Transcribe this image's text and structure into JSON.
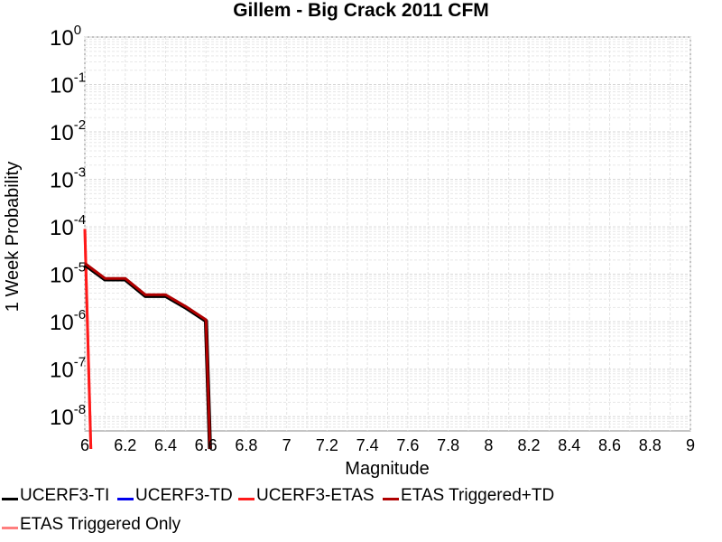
{
  "chart_data": {
    "type": "line",
    "title": "Gillem - Big Crack 2011 CFM",
    "xlabel": "Magnitude",
    "ylabel": "1 Week Probability",
    "xlim": [
      6,
      9
    ],
    "ylim_log10": [
      -8.3,
      0
    ],
    "y_scale": "log",
    "grid": true,
    "x_ticks": [
      "6",
      "6.2",
      "6.4",
      "6.6",
      "6.8",
      "7",
      "7.2",
      "7.4",
      "7.6",
      "7.8",
      "8",
      "8.2",
      "8.4",
      "8.6",
      "8.8",
      "9"
    ],
    "y_ticks": [
      {
        "base": "10",
        "exp": "0"
      },
      {
        "base": "10",
        "exp": "-1"
      },
      {
        "base": "10",
        "exp": "-2"
      },
      {
        "base": "10",
        "exp": "-3"
      },
      {
        "base": "10",
        "exp": "-4"
      },
      {
        "base": "10",
        "exp": "-5"
      },
      {
        "base": "10",
        "exp": "-6"
      },
      {
        "base": "10",
        "exp": "-7"
      },
      {
        "base": "10",
        "exp": "-8"
      }
    ],
    "series": [
      {
        "name": "UCERF3-TI",
        "color": "#000000",
        "x": [
          6.0,
          6.1,
          6.2,
          6.3,
          6.4,
          6.5,
          6.6,
          6.62
        ],
        "y": [
          1.6e-05,
          7.8e-06,
          7.8e-06,
          3.5e-06,
          3.5e-06,
          2e-06,
          1.05e-06,
          1e-09
        ]
      },
      {
        "name": "UCERF3-TD",
        "color": "#0000ee",
        "x": [
          6.0,
          6.1,
          6.2,
          6.3,
          6.4,
          6.5,
          6.6,
          6.62
        ],
        "y": [
          1.6e-05,
          7.8e-06,
          7.8e-06,
          3.5e-06,
          3.5e-06,
          2e-06,
          1.05e-06,
          1e-09
        ]
      },
      {
        "name": "UCERF3-ETAS",
        "color": "#ff1a1a",
        "x": [
          6.0,
          6.03
        ],
        "y": [
          9e-05,
          1e-09
        ]
      },
      {
        "name": "ETAS Triggered+TD",
        "color": "#b00000",
        "x": [
          6.0,
          6.1,
          6.2,
          6.3,
          6.4,
          6.5,
          6.6,
          6.62
        ],
        "y": [
          1.7e-05,
          8.2e-06,
          8.2e-06,
          3.7e-06,
          3.7e-06,
          2.1e-06,
          1.1e-06,
          1e-09
        ]
      },
      {
        "name": "ETAS Triggered Only",
        "color": "#ff7f7f",
        "x": [
          6.0,
          6.03
        ],
        "y": [
          9e-05,
          1e-09
        ]
      }
    ],
    "legend_placement": "bottom"
  }
}
